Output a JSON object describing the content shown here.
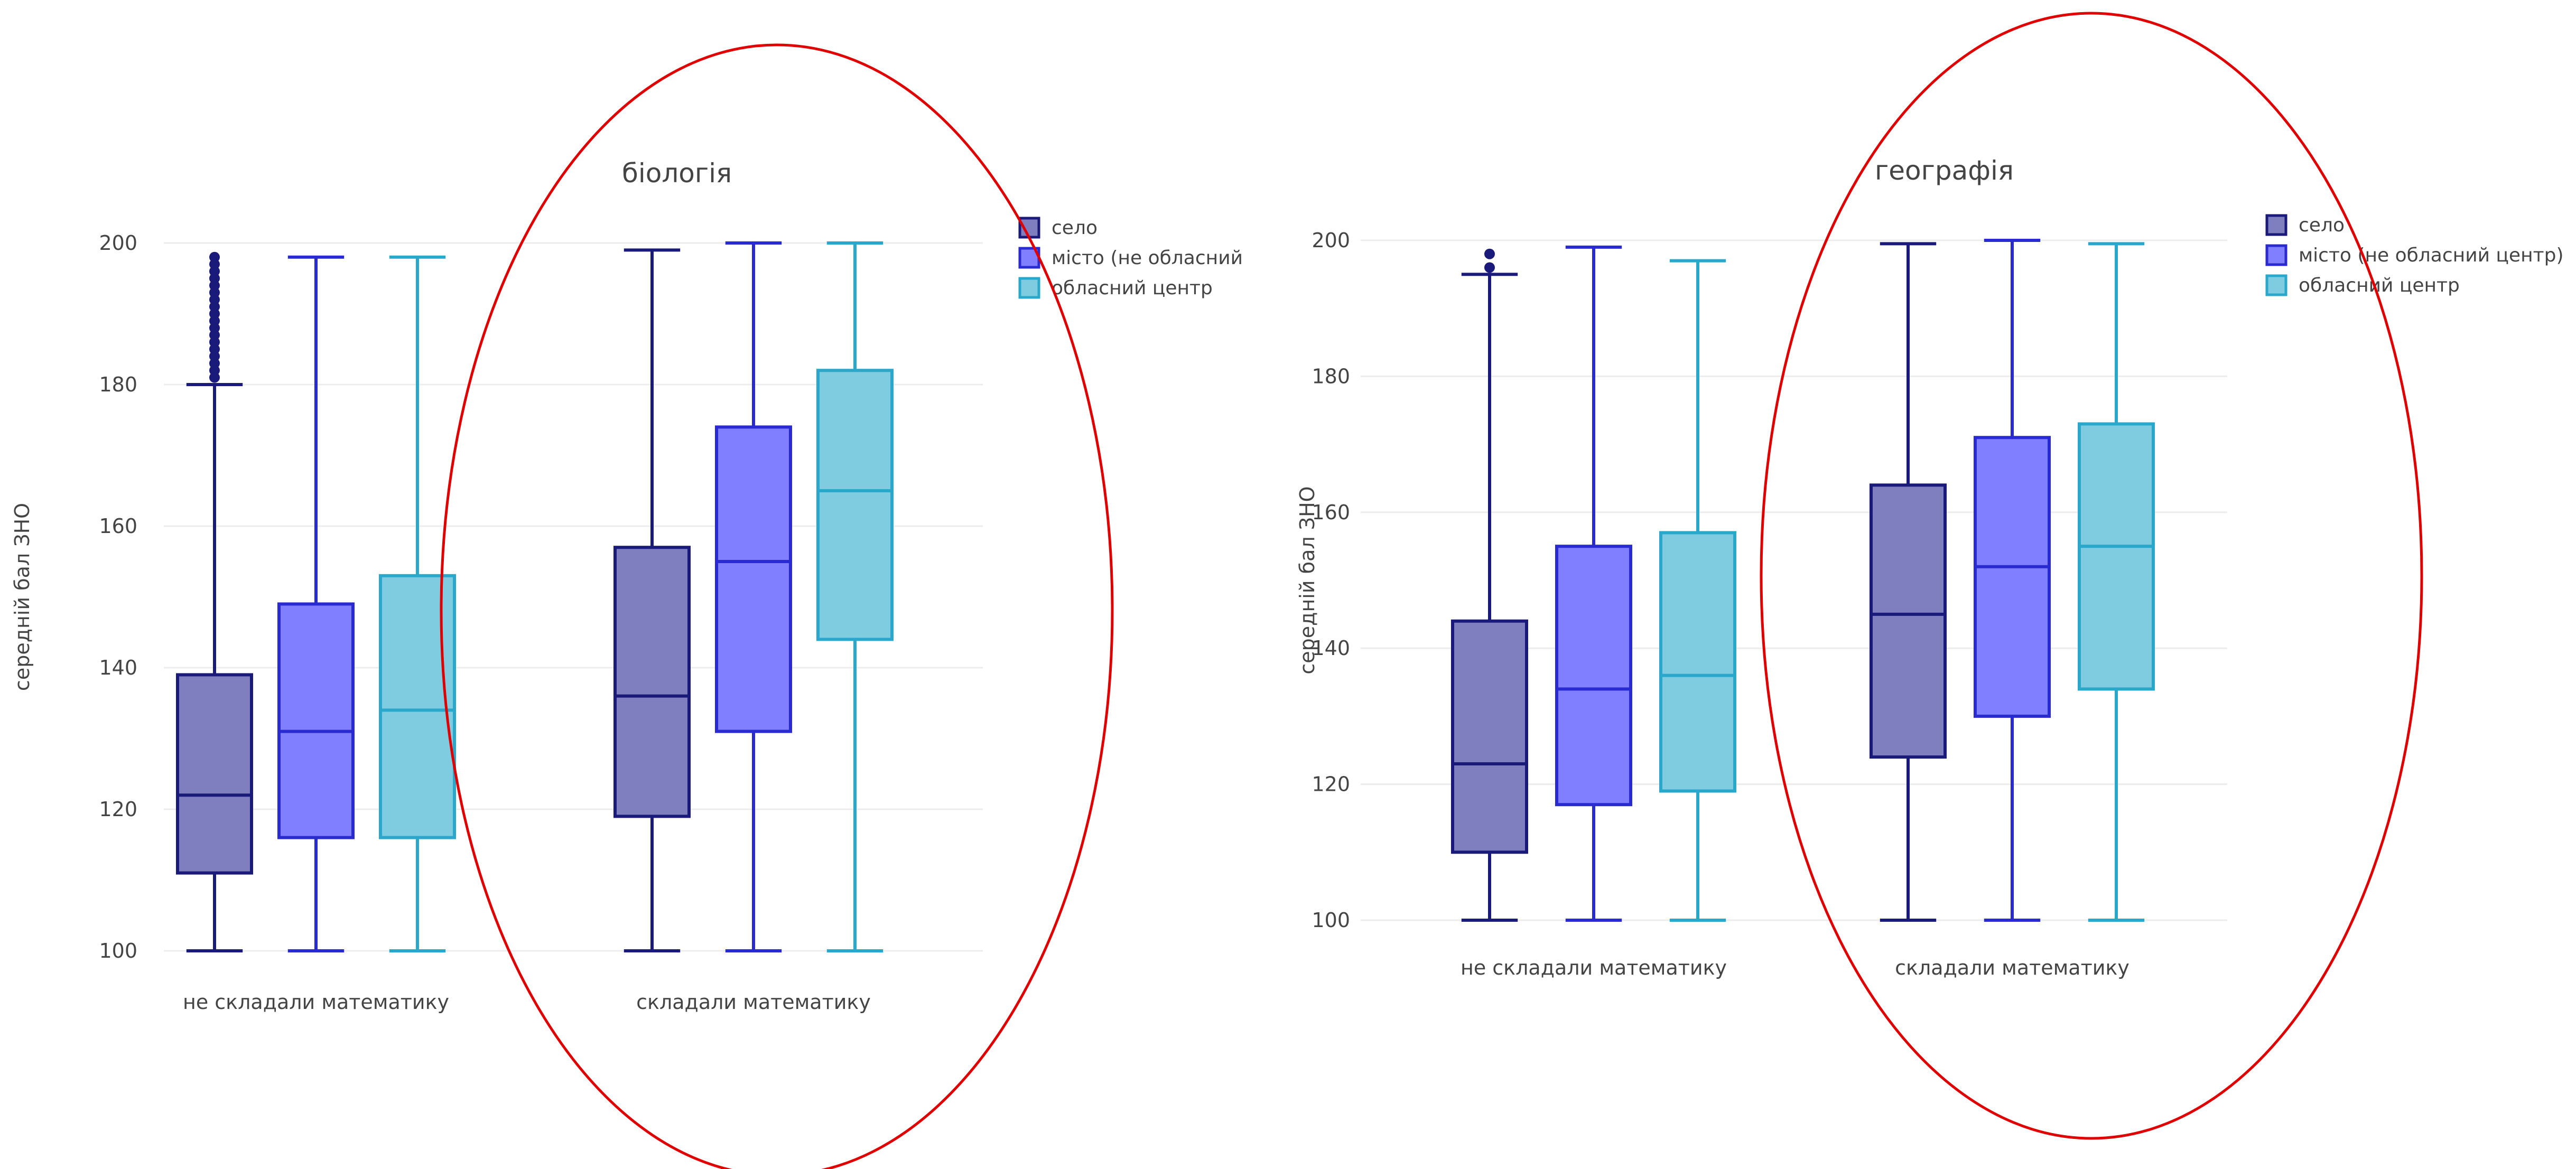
{
  "chart_data": [
    {
      "type": "box",
      "title": "біологія",
      "ylabel": "середній бал ЗНО",
      "xlabel": "",
      "ylim": [
        100,
        200
      ],
      "yticks": [
        100,
        120,
        140,
        160,
        180,
        200
      ],
      "categories": [
        "не складали математику",
        "складали математику"
      ],
      "grid": true,
      "legend_position": "top-right",
      "series": [
        {
          "name": "село",
          "color": "#1a1a7a",
          "boxes": [
            {
              "category": "не складали математику",
              "min": 100,
              "q1": 111,
              "median": 122,
              "q3": 139,
              "max": 180,
              "outliers": [
                181,
                182,
                183,
                184,
                185,
                186,
                187,
                188,
                189,
                190,
                191,
                192,
                193,
                194,
                195,
                196,
                197,
                198
              ]
            },
            {
              "category": "складали математику",
              "min": 100,
              "q1": 119,
              "median": 136,
              "q3": 157,
              "max": 199,
              "outliers": []
            }
          ]
        },
        {
          "name": "місто (не обласний",
          "color": "#2a2ad2",
          "boxes": [
            {
              "category": "не складали математику",
              "min": 100,
              "q1": 116,
              "median": 131,
              "q3": 149,
              "max": 198,
              "outliers": []
            },
            {
              "category": "складали математику",
              "min": 100,
              "q1": 131,
              "median": 155,
              "q3": 174,
              "max": 200,
              "outliers": []
            }
          ]
        },
        {
          "name": "обласний центр",
          "color": "#2aa8cc",
          "boxes": [
            {
              "category": "не складали математику",
              "min": 100,
              "q1": 116,
              "median": 134,
              "q3": 153,
              "max": 198,
              "outliers": []
            },
            {
              "category": "складали математику",
              "min": 100,
              "q1": 144,
              "median": 165,
              "q3": 182,
              "max": 200,
              "outliers": []
            }
          ]
        }
      ]
    },
    {
      "type": "box",
      "title": "географія",
      "ylabel": "середній бал ЗНО",
      "xlabel": "",
      "ylim": [
        100,
        200
      ],
      "yticks": [
        100,
        120,
        140,
        160,
        180,
        200
      ],
      "categories": [
        "не складали математику",
        "складали математику"
      ],
      "grid": true,
      "legend_position": "top-right",
      "series": [
        {
          "name": "село",
          "color": "#1a1a7a",
          "boxes": [
            {
              "category": "не складали математику",
              "min": 100,
              "q1": 110,
              "median": 123,
              "q3": 144,
              "max": 195,
              "outliers": [
                196,
                198
              ]
            },
            {
              "category": "складали математику",
              "min": 100,
              "q1": 124,
              "median": 145,
              "q3": 164,
              "max": 199.5,
              "outliers": []
            }
          ]
        },
        {
          "name": "місто (не обласний центр)",
          "color": "#2a2ad2",
          "boxes": [
            {
              "category": "не складали математику",
              "min": 100,
              "q1": 117,
              "median": 134,
              "q3": 155,
              "max": 199,
              "outliers": []
            },
            {
              "category": "складали математику",
              "min": 100,
              "q1": 130,
              "median": 152,
              "q3": 171,
              "max": 200,
              "outliers": []
            }
          ]
        },
        {
          "name": "обласний центр",
          "color": "#2aa8cc",
          "boxes": [
            {
              "category": "не складали математику",
              "min": 100,
              "q1": 119,
              "median": 136,
              "q3": 157,
              "max": 197,
              "outliers": []
            },
            {
              "category": "складали математику",
              "min": 100,
              "q1": 134,
              "median": 155,
              "q3": 173,
              "max": 199.5,
              "outliers": []
            }
          ]
        }
      ]
    }
  ],
  "annotations": {
    "highlight_color": "#e00000",
    "fill_colors": [
      "#7f7fbf",
      "#7f7fff",
      "#7fcbe0"
    ]
  }
}
